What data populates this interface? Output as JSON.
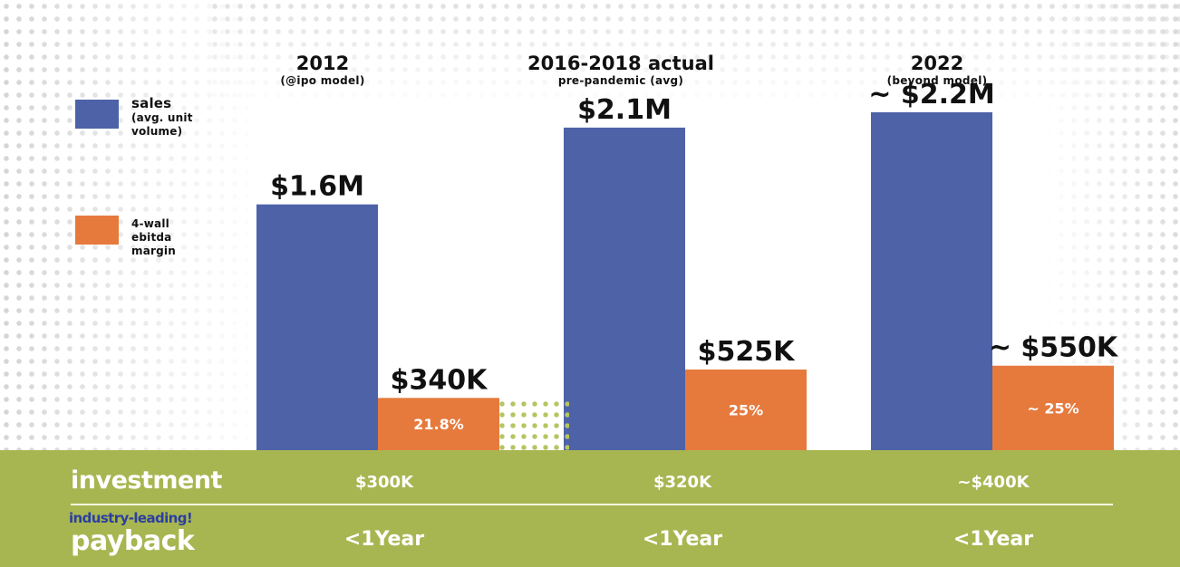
{
  "colors": {
    "sales": "#4e62a8",
    "margin": "#e67a3d",
    "band": "#a8b651"
  },
  "legend": {
    "sales": {
      "title": "sales",
      "sub1": "(avg. unit",
      "sub2": "volume)"
    },
    "margin": {
      "line1": "4-wall",
      "line2": "ebitda",
      "line3": "margin"
    }
  },
  "columns": [
    {
      "title": "2012",
      "subtitle": "(@ipo model)"
    },
    {
      "title": "2016-2018 actual",
      "subtitle": "pre-pandemic (avg)"
    },
    {
      "title": "2022",
      "subtitle": "(beyond model)"
    }
  ],
  "chart_data": {
    "type": "bar",
    "categories": [
      "2012",
      "2016-2018 actual",
      "2022"
    ],
    "series": [
      {
        "name": "Sales (avg. unit volume)",
        "values": [
          1.6,
          2.1,
          2.2
        ],
        "unit": "$M",
        "labels": [
          "$1.6M",
          "$2.1M",
          "~ $2.2M"
        ]
      },
      {
        "name": "4-wall EBITDA margin",
        "values": [
          0.34,
          0.525,
          0.55
        ],
        "unit": "$M",
        "labels": [
          "$340K",
          "$525K",
          "~ $550K"
        ],
        "percent_labels": [
          "21.8%",
          "25%",
          "~ 25%"
        ]
      }
    ],
    "ylim": [
      0,
      2.4
    ],
    "title": "",
    "xlabel": "",
    "ylabel": ""
  },
  "rows": {
    "investment": {
      "label": "investment",
      "values": [
        "$300K",
        "$320K",
        "~$400K"
      ]
    },
    "payback": {
      "label_small": "industry-leading!",
      "label": "payback",
      "values": [
        "<1Year",
        "<1Year",
        "<1Year"
      ]
    }
  }
}
